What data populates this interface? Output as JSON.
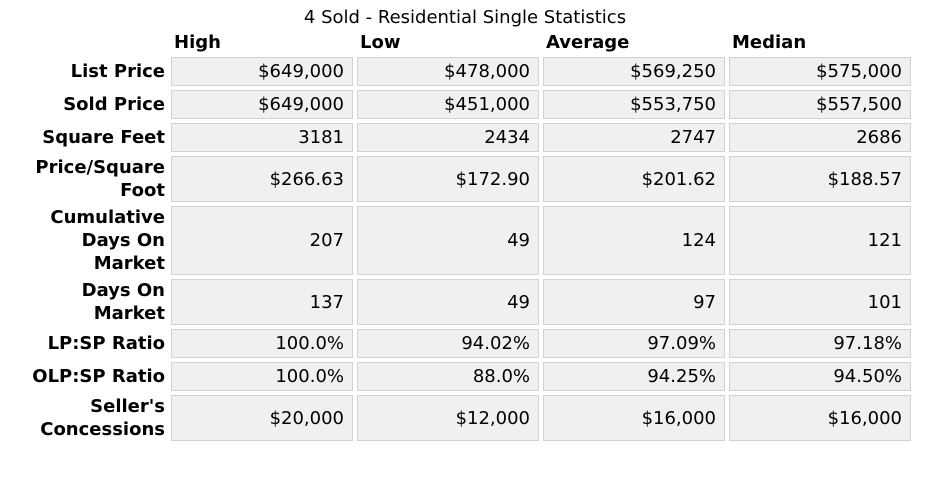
{
  "title": "4 Sold - Residential Single Statistics",
  "colors": {
    "page_background": "#ffffff",
    "cell_background": "#f0f0f0",
    "cell_border": "#d2d2d2",
    "text": "#000000"
  },
  "table": {
    "headers": [
      "High",
      "Low",
      "Average",
      "Median"
    ],
    "rows": [
      {
        "label": "List Price",
        "high": "$649,000",
        "low": "$478,000",
        "average": "$569,250",
        "median": "$575,000"
      },
      {
        "label": "Sold Price",
        "high": "$649,000",
        "low": "$451,000",
        "average": "$553,750",
        "median": "$557,500"
      },
      {
        "label": "Square Feet",
        "high": "3181",
        "low": "2434",
        "average": "2747",
        "median": "2686"
      },
      {
        "label": "Price/Square\nFoot",
        "high": "$266.63",
        "low": "$172.90",
        "average": "$201.62",
        "median": "$188.57"
      },
      {
        "label": "Cumulative\nDays On\nMarket",
        "high": "207",
        "low": "49",
        "average": "124",
        "median": "121"
      },
      {
        "label": "Days On\nMarket",
        "high": "137",
        "low": "49",
        "average": "97",
        "median": "101"
      },
      {
        "label": "LP:SP Ratio",
        "high": "100.0%",
        "low": "94.02%",
        "average": "97.09%",
        "median": "97.18%"
      },
      {
        "label": "OLP:SP Ratio",
        "high": "100.0%",
        "low": "88.0%",
        "average": "94.25%",
        "median": "94.50%"
      },
      {
        "label": "Seller's\nConcessions",
        "high": "$20,000",
        "low": "$12,000",
        "average": "$16,000",
        "median": "$16,000"
      }
    ]
  },
  "chart_data": {
    "type": "table",
    "title": "4 Sold - Residential Single Statistics",
    "columns": [
      "High",
      "Low",
      "Average",
      "Median"
    ],
    "row_labels": [
      "List Price",
      "Sold Price",
      "Square Feet",
      "Price/Square Foot",
      "Cumulative Days On Market",
      "Days On Market",
      "LP:SP Ratio",
      "OLP:SP Ratio",
      "Seller's Concessions"
    ],
    "rows": [
      [
        "$649,000",
        "$478,000",
        "$569,250",
        "$575,000"
      ],
      [
        "$649,000",
        "$451,000",
        "$553,750",
        "$557,500"
      ],
      [
        "3181",
        "2434",
        "2747",
        "2686"
      ],
      [
        "$266.63",
        "$172.90",
        "$201.62",
        "$188.57"
      ],
      [
        "207",
        "49",
        "124",
        "121"
      ],
      [
        "137",
        "49",
        "97",
        "101"
      ],
      [
        "100.0%",
        "94.02%",
        "97.09%",
        "97.18%"
      ],
      [
        "100.0%",
        "88.0%",
        "94.25%",
        "94.50%"
      ],
      [
        "$20,000",
        "$12,000",
        "$16,000",
        "$16,000"
      ]
    ]
  }
}
